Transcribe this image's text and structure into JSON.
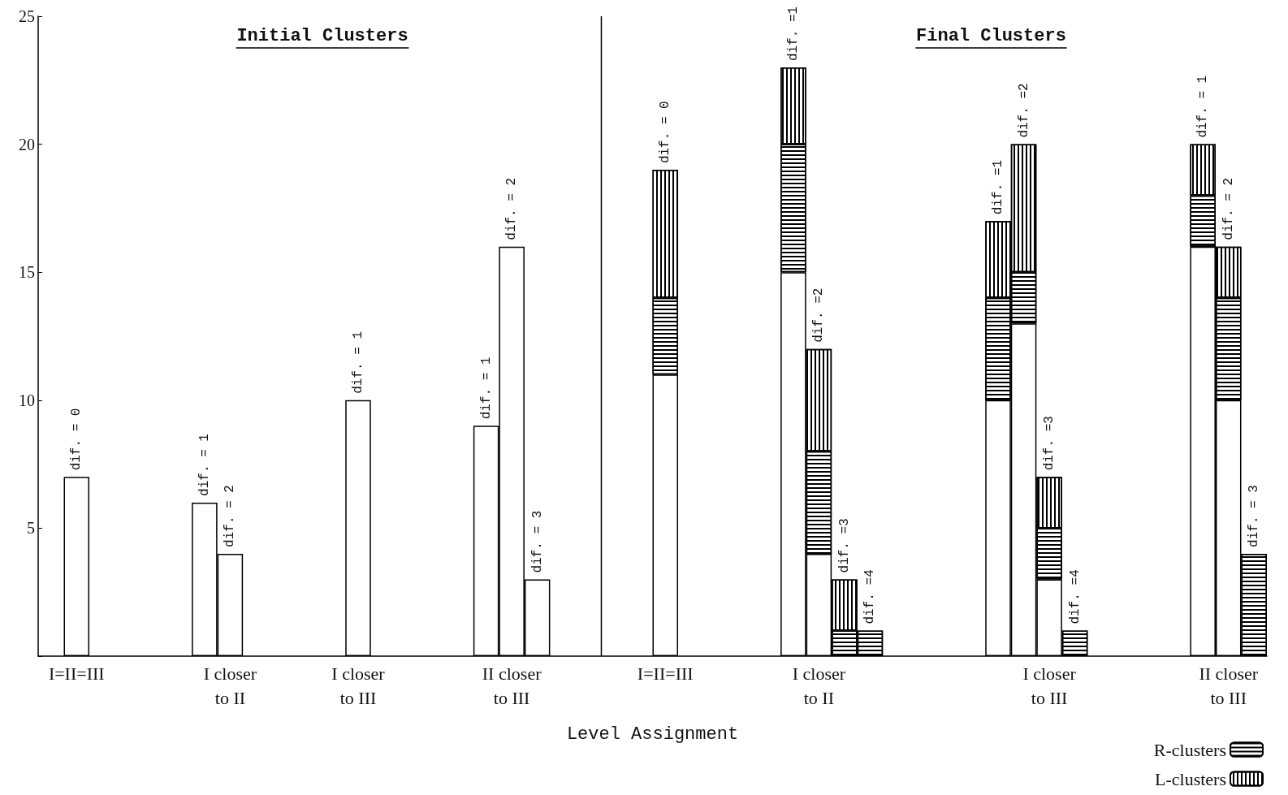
{
  "chart_data": {
    "type": "bar",
    "stacked": true,
    "xlabel": "Level Assignment",
    "categories": [
      null,
      "I=II=III",
      null,
      null,
      null,
      null,
      null,
      "I closer\nto II",
      null,
      null,
      null,
      null,
      "I closer\nto III",
      null,
      null,
      null,
      null,
      null,
      "II closer\nto III",
      null,
      null,
      null,
      null,
      null,
      "I=II=III",
      null,
      null,
      null,
      null,
      null,
      "I closer\nto II",
      null,
      null,
      null,
      null,
      null,
      null,
      null,
      null,
      "I closer\nto III",
      null,
      null,
      null,
      null,
      null,
      null,
      "II closer\nto III",
      null
    ],
    "series": [
      {
        "color": "#ffffff",
        "values": [
          null,
          7,
          null,
          null,
          null,
          null,
          6,
          4,
          null,
          null,
          null,
          null,
          10,
          null,
          null,
          null,
          null,
          9,
          16,
          3,
          null,
          null,
          null,
          null,
          11,
          null,
          null,
          null,
          null,
          15,
          4,
          null,
          null,
          null,
          null,
          null,
          null,
          10,
          13,
          3,
          null,
          null,
          null,
          null,
          null,
          16,
          10,
          null
        ]
      },
      {
        "name": "R-clusters",
        "color": "#000000",
        "values": [
          null,
          null,
          null,
          null,
          null,
          null,
          null,
          null,
          null,
          null,
          null,
          null,
          null,
          null,
          null,
          null,
          null,
          null,
          null,
          null,
          null,
          null,
          null,
          null,
          3,
          null,
          null,
          null,
          null,
          5,
          4,
          1,
          1,
          null,
          null,
          null,
          null,
          4,
          2,
          2,
          1,
          null,
          null,
          null,
          null,
          2,
          4,
          4
        ]
      },
      {
        "name": "L-clusters",
        "color": "#000000",
        "values": [
          null,
          null,
          null,
          null,
          null,
          null,
          null,
          null,
          null,
          null,
          null,
          null,
          null,
          null,
          null,
          null,
          null,
          null,
          null,
          null,
          null,
          null,
          null,
          null,
          5,
          null,
          null,
          null,
          null,
          3,
          4,
          2,
          null,
          null,
          null,
          null,
          null,
          3,
          5,
          2,
          null,
          null,
          null,
          null,
          null,
          2,
          2,
          null
        ]
      }
    ],
    "ylim": [
      0,
      25
    ],
    "yticks": [
      {
        "value": 0,
        "label": null
      },
      5,
      10,
      15,
      20,
      25
    ],
    "legend": "bottom right",
    "annotations": [
      "Initial Clusters",
      "Final Clusters",
      "dif. = 0",
      "dif. = 1",
      "dif. = 2",
      "dif. = 1",
      "dif. = 1",
      "dif. = 2",
      "dif. = 3",
      "dif. = 0",
      "dif. =1",
      "dif. =2",
      "dif. =3",
      "dif. =4",
      "dif. =1",
      "dif. =2",
      "dif. =3",
      "dif. =4",
      "dif. = 1",
      "dif. = 2",
      "dif. = 3"
    ]
  }
}
